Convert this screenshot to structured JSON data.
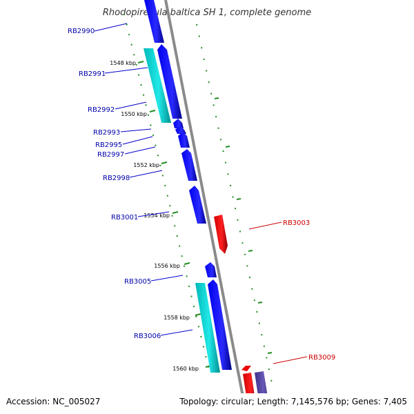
{
  "title": "Rhodopirellula baltica SH 1, complete genome",
  "footer": {
    "accession": "Accession: NC_005027",
    "summary": "Topology: circular; Length: 7,145,576 bp; Genes: 7,405"
  },
  "ruler_labels": [
    "1548 kbp",
    "1550 kbp",
    "1552 kbp",
    "1554 kbp",
    "1556 kbp",
    "1558 kbp",
    "1560 kbp"
  ],
  "gene_labels": {
    "RB2990": "RB2990",
    "RB2991": "RB2991",
    "RB2992": "RB2992",
    "RB2993": "RB2993",
    "RB2995": "RB2995",
    "RB2997": "RB2997",
    "RB2998": "RB2998",
    "RB3001": "RB3001",
    "RB3003": "RB3003",
    "RB3005": "RB3005",
    "RB3006": "RB3006",
    "RB3009": "RB3009"
  },
  "colors": {
    "forward_gene": "#0000ee",
    "reverse_gene": "#ee0000",
    "cds_feature": "#00cccc",
    "other_feature": "#4a3a9a",
    "backbone": "#888888",
    "ruler": "#228b22",
    "label_forward": "#0000aa",
    "label_reverse": "#cc0000"
  }
}
